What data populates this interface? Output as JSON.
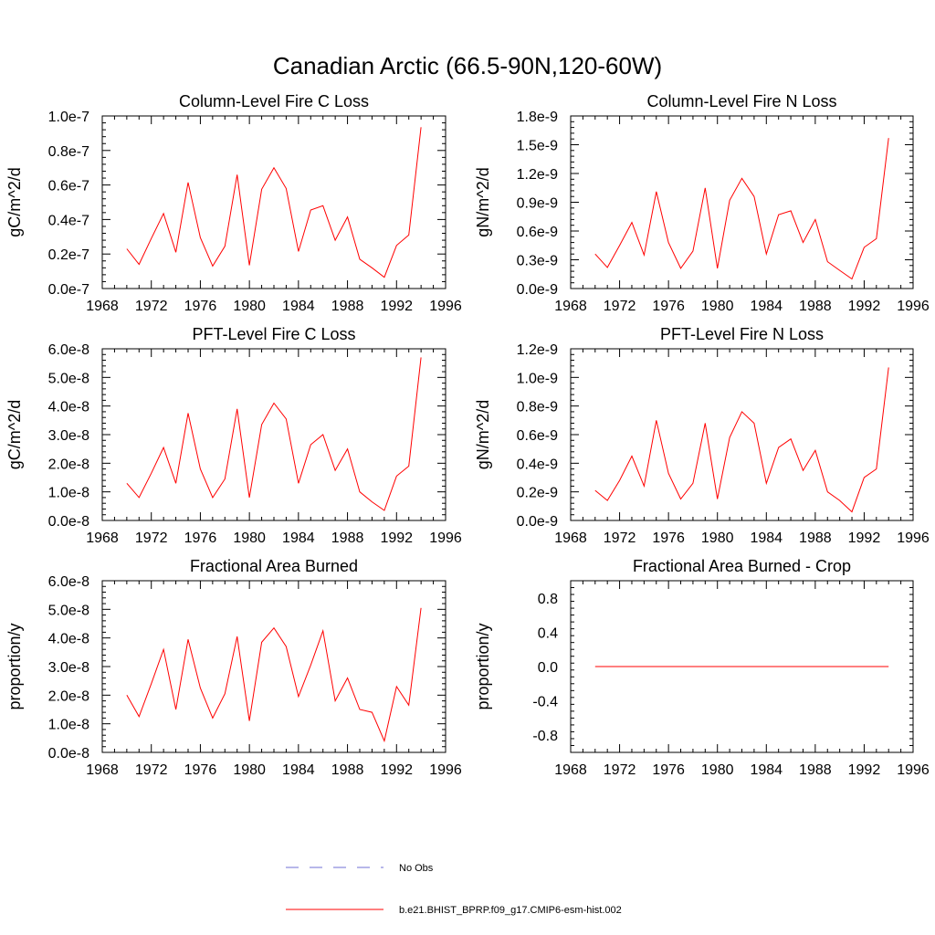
{
  "title": "Canadian Arctic (66.5-90N,120-60W)",
  "colors": {
    "model": "#ff0000",
    "obs": "#6f6fd6",
    "axis": "#000000"
  },
  "legend": {
    "obs_label": "No Obs",
    "model_label": "b.e21.BHIST_BPRP.f09_g17.CMIP6-esm-hist.002"
  },
  "chart_data": [
    {
      "type": "line",
      "title": "Column-Level Fire C Loss",
      "ylabel": "gC/m^2/d",
      "xlim": [
        1968,
        1996
      ],
      "ylim": [
        0,
        1e-07
      ],
      "xticks": [
        1968,
        1972,
        1976,
        1980,
        1984,
        1988,
        1992,
        1996
      ],
      "xtick_labels": [
        "1968",
        "1972",
        "1976",
        "1980",
        "1984",
        "1988",
        "1992",
        "1996"
      ],
      "yticks": [
        0,
        2e-08,
        4e-08,
        6e-08,
        8e-08,
        1e-07
      ],
      "ytick_labels": [
        "0.0e-7",
        "0.2e-7",
        "0.4e-7",
        "0.6e-7",
        "0.8e-7",
        "1.0e-7"
      ],
      "x": [
        1970,
        1971,
        1972,
        1973,
        1974,
        1975,
        1976,
        1977,
        1978,
        1979,
        1980,
        1981,
        1982,
        1983,
        1984,
        1985,
        1986,
        1987,
        1988,
        1989,
        1990,
        1991,
        1992,
        1993,
        1994
      ],
      "series": [
        {
          "name": "b.e21.BHIST_BPRP.f09_g17.CMIP6-esm-hist.002",
          "values": [
            2.3e-08,
            1.4e-08,
            2.9e-08,
            4.35e-08,
            2.1e-08,
            6.15e-08,
            2.95e-08,
            1.3e-08,
            2.45e-08,
            6.6e-08,
            1.35e-08,
            5.75e-08,
            7e-08,
            5.8e-08,
            2.15e-08,
            4.55e-08,
            4.8e-08,
            2.8e-08,
            4.15e-08,
            1.7e-08,
            1.2e-08,
            6.5e-09,
            2.5e-08,
            3.1e-08,
            9.35e-08
          ]
        }
      ]
    },
    {
      "type": "line",
      "title": "Column-Level Fire N Loss",
      "ylabel": "gN/m^2/d",
      "xlim": [
        1968,
        1996
      ],
      "ylim": [
        0,
        1.8e-09
      ],
      "xticks": [
        1968,
        1972,
        1976,
        1980,
        1984,
        1988,
        1992,
        1996
      ],
      "xtick_labels": [
        "1968",
        "1972",
        "1976",
        "1980",
        "1984",
        "1988",
        "1992",
        "1996"
      ],
      "yticks": [
        0,
        3e-10,
        6e-10,
        9e-10,
        1.2e-09,
        1.5e-09,
        1.8e-09
      ],
      "ytick_labels": [
        "0.0e-9",
        "0.3e-9",
        "0.6e-9",
        "0.9e-9",
        "1.2e-9",
        "1.5e-9",
        "1.8e-9"
      ],
      "x": [
        1970,
        1971,
        1972,
        1973,
        1974,
        1975,
        1976,
        1977,
        1978,
        1979,
        1980,
        1981,
        1982,
        1983,
        1984,
        1985,
        1986,
        1987,
        1988,
        1989,
        1990,
        1991,
        1992,
        1993,
        1994
      ],
      "series": [
        {
          "name": "b.e21.BHIST_BPRP.f09_g17.CMIP6-esm-hist.002",
          "values": [
            3.6e-10,
            2.2e-10,
            4.5e-10,
            6.9e-10,
            3.5e-10,
            1.01e-09,
            4.8e-10,
            2.1e-10,
            3.9e-10,
            1.05e-09,
            2.1e-10,
            9.2e-10,
            1.15e-09,
            9.6e-10,
            3.6e-10,
            7.7e-10,
            8.1e-10,
            4.8e-10,
            7.2e-10,
            2.8e-10,
            1.9e-10,
            1e-10,
            4.3e-10,
            5.2e-10,
            1.57e-09
          ]
        }
      ]
    },
    {
      "type": "line",
      "title": "PFT-Level Fire C Loss",
      "ylabel": "gC/m^2/d",
      "xlim": [
        1968,
        1996
      ],
      "ylim": [
        0,
        6e-08
      ],
      "xticks": [
        1968,
        1972,
        1976,
        1980,
        1984,
        1988,
        1992,
        1996
      ],
      "xtick_labels": [
        "1968",
        "1972",
        "1976",
        "1980",
        "1984",
        "1988",
        "1992",
        "1996"
      ],
      "yticks": [
        0,
        1e-08,
        2e-08,
        3e-08,
        4e-08,
        5e-08,
        6e-08
      ],
      "ytick_labels": [
        "0.0e-8",
        "1.0e-8",
        "2.0e-8",
        "3.0e-8",
        "4.0e-8",
        "5.0e-8",
        "6.0e-8"
      ],
      "x": [
        1970,
        1971,
        1972,
        1973,
        1974,
        1975,
        1976,
        1977,
        1978,
        1979,
        1980,
        1981,
        1982,
        1983,
        1984,
        1985,
        1986,
        1987,
        1988,
        1989,
        1990,
        1991,
        1992,
        1993,
        1994
      ],
      "series": [
        {
          "name": "b.e21.BHIST_BPRP.f09_g17.CMIP6-esm-hist.002",
          "values": [
            1.3e-08,
            8e-09,
            1.65e-08,
            2.55e-08,
            1.3e-08,
            3.75e-08,
            1.8e-08,
            8e-09,
            1.45e-08,
            3.9e-08,
            8e-09,
            3.35e-08,
            4.1e-08,
            3.55e-08,
            1.3e-08,
            2.65e-08,
            3e-08,
            1.75e-08,
            2.5e-08,
            1e-08,
            6.5e-09,
            3.5e-09,
            1.55e-08,
            1.9e-08,
            5.7e-08
          ]
        }
      ]
    },
    {
      "type": "line",
      "title": "PFT-Level Fire N Loss",
      "ylabel": "gN/m^2/d",
      "xlim": [
        1968,
        1996
      ],
      "ylim": [
        0,
        1.2e-09
      ],
      "xticks": [
        1968,
        1972,
        1976,
        1980,
        1984,
        1988,
        1992,
        1996
      ],
      "xtick_labels": [
        "1968",
        "1972",
        "1976",
        "1980",
        "1984",
        "1988",
        "1992",
        "1996"
      ],
      "yticks": [
        0,
        2e-10,
        4e-10,
        6e-10,
        8e-10,
        1e-09,
        1.2e-09
      ],
      "ytick_labels": [
        "0.0e-9",
        "0.2e-9",
        "0.4e-9",
        "0.6e-9",
        "0.8e-9",
        "1.0e-9",
        "1.2e-9"
      ],
      "x": [
        1970,
        1971,
        1972,
        1973,
        1974,
        1975,
        1976,
        1977,
        1978,
        1979,
        1980,
        1981,
        1982,
        1983,
        1984,
        1985,
        1986,
        1987,
        1988,
        1989,
        1990,
        1991,
        1992,
        1993,
        1994
      ],
      "series": [
        {
          "name": "b.e21.BHIST_BPRP.f09_g17.CMIP6-esm-hist.002",
          "values": [
            2.1e-10,
            1.4e-10,
            2.8e-10,
            4.5e-10,
            2.4e-10,
            7e-10,
            3.3e-10,
            1.5e-10,
            2.6e-10,
            6.8e-10,
            1.5e-10,
            5.8e-10,
            7.6e-10,
            6.8e-10,
            2.6e-10,
            5.1e-10,
            5.7e-10,
            3.5e-10,
            4.9e-10,
            2e-10,
            1.4e-10,
            6e-11,
            3e-10,
            3.6e-10,
            1.07e-09
          ]
        }
      ]
    },
    {
      "type": "line",
      "title": "Fractional Area Burned",
      "ylabel": "proportion/y",
      "xlim": [
        1968,
        1996
      ],
      "ylim": [
        0,
        6e-08
      ],
      "xticks": [
        1968,
        1972,
        1976,
        1980,
        1984,
        1988,
        1992,
        1996
      ],
      "xtick_labels": [
        "1968",
        "1972",
        "1976",
        "1980",
        "1984",
        "1988",
        "1992",
        "1996"
      ],
      "yticks": [
        0,
        1e-08,
        2e-08,
        3e-08,
        4e-08,
        5e-08,
        6e-08
      ],
      "ytick_labels": [
        "0.0e-8",
        "1.0e-8",
        "2.0e-8",
        "3.0e-8",
        "4.0e-8",
        "5.0e-8",
        "6.0e-8"
      ],
      "x": [
        1970,
        1971,
        1972,
        1973,
        1974,
        1975,
        1976,
        1977,
        1978,
        1979,
        1980,
        1981,
        1982,
        1983,
        1984,
        1985,
        1986,
        1987,
        1988,
        1989,
        1990,
        1991,
        1992,
        1993,
        1994
      ],
      "series": [
        {
          "name": "b.e21.BHIST_BPRP.f09_g17.CMIP6-esm-hist.002",
          "values": [
            2e-08,
            1.25e-08,
            2.4e-08,
            3.6e-08,
            1.5e-08,
            3.95e-08,
            2.25e-08,
            1.2e-08,
            2.05e-08,
            4.05e-08,
            1.1e-08,
            3.85e-08,
            4.35e-08,
            3.7e-08,
            1.95e-08,
            3.05e-08,
            4.25e-08,
            1.8e-08,
            2.6e-08,
            1.5e-08,
            1.4e-08,
            4e-09,
            2.3e-08,
            1.65e-08,
            5.05e-08
          ]
        }
      ]
    },
    {
      "type": "line",
      "title": "Fractional Area Burned - Crop",
      "ylabel": "proportion/y",
      "xlim": [
        1968,
        1996
      ],
      "ylim": [
        -1.0,
        1.0
      ],
      "xticks": [
        1968,
        1972,
        1976,
        1980,
        1984,
        1988,
        1992,
        1996
      ],
      "xtick_labels": [
        "1968",
        "1972",
        "1976",
        "1980",
        "1984",
        "1988",
        "1992",
        "1996"
      ],
      "yticks": [
        -0.8,
        -0.4,
        0,
        0.4,
        0.8
      ],
      "ytick_labels": [
        "-0.8",
        "-0.4",
        "0.0",
        "0.4",
        "0.8"
      ],
      "x": [
        1970,
        1971,
        1972,
        1973,
        1974,
        1975,
        1976,
        1977,
        1978,
        1979,
        1980,
        1981,
        1982,
        1983,
        1984,
        1985,
        1986,
        1987,
        1988,
        1989,
        1990,
        1991,
        1992,
        1993,
        1994
      ],
      "series": [
        {
          "name": "b.e21.BHIST_BPRP.f09_g17.CMIP6-esm-hist.002",
          "values": [
            0,
            0,
            0,
            0,
            0,
            0,
            0,
            0,
            0,
            0,
            0,
            0,
            0,
            0,
            0,
            0,
            0,
            0,
            0,
            0,
            0,
            0,
            0,
            0,
            0
          ]
        }
      ]
    }
  ]
}
